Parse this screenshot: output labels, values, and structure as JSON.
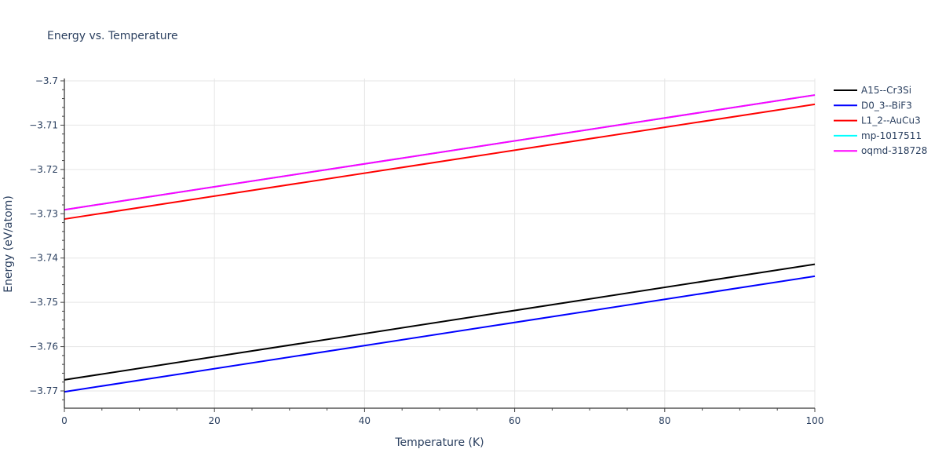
{
  "chart_data": {
    "type": "line",
    "title": "Energy vs. Temperature",
    "xlabel": "Temperature (K)",
    "ylabel": "Energy (eV/atom)",
    "xlim": [
      0,
      100
    ],
    "ylim": [
      -3.7738,
      -3.6995
    ],
    "x_ticks": [
      0,
      20,
      40,
      60,
      80,
      100
    ],
    "x_tick_labels": [
      "0",
      "20",
      "40",
      "60",
      "80",
      "100"
    ],
    "y_ticks": [
      -3.7,
      -3.71,
      -3.72,
      -3.73,
      -3.74,
      -3.75,
      -3.76,
      -3.77
    ],
    "y_tick_labels": [
      "−3.7",
      "−3.71",
      "−3.72",
      "−3.73",
      "−3.74",
      "−3.75",
      "−3.76",
      "−3.77"
    ],
    "grid": true,
    "legend_position": "right",
    "x": [
      0,
      100
    ],
    "series": [
      {
        "name": "A15--Cr3Si",
        "color": "#000000",
        "values": [
          -3.7675,
          -3.7414
        ]
      },
      {
        "name": "D0_3--BiF3",
        "color": "#0000ff",
        "values": [
          -3.7702,
          -3.7441
        ]
      },
      {
        "name": "L1_2--AuCu3",
        "color": "#ff0000",
        "values": [
          -3.7312,
          -3.7053
        ]
      },
      {
        "name": "mp-1017511",
        "color": "#00ffff",
        "values": [
          -3.7291,
          -3.7032
        ]
      },
      {
        "name": "oqmd-318728",
        "color": "#ff00ff",
        "values": [
          -3.7291,
          -3.7032
        ]
      }
    ]
  }
}
